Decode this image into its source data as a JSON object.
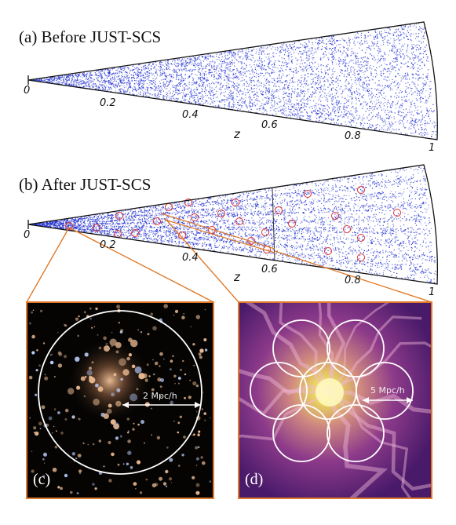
{
  "panel_a": {
    "title": "(a) Before JUST-SCS"
  },
  "panel_b": {
    "title": "(b) After JUST-SCS"
  },
  "axis": {
    "label": "z",
    "ticks": [
      "0",
      "0.2",
      "0.4",
      "0.6",
      "0.8",
      "1"
    ]
  },
  "panel_c": {
    "letter": "(c)",
    "scale_label": "2 Mpc/h"
  },
  "panel_d": {
    "letter": "(d)",
    "scale_label": "5 Mpc/h"
  },
  "colors": {
    "galaxy_points": "#1f2fd0",
    "cluster_circles": "#e03030",
    "zoom_lines": "#e07a2a",
    "frame_border": "#e07a2a",
    "overlay_circles": "#ffffff"
  }
}
